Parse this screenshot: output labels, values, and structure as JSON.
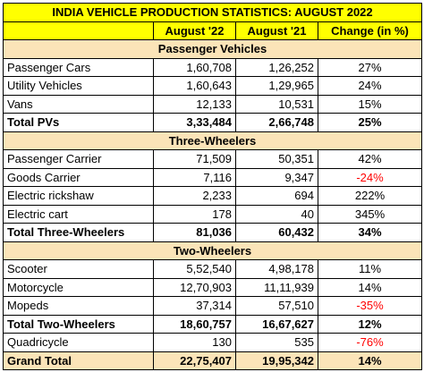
{
  "title": "INDIA VEHICLE PRODUCTION STATISTICS: AUGUST 2022",
  "columns": [
    "",
    "August '22",
    "August '21",
    "Change (in %)"
  ],
  "sections": [
    {
      "name": "Passenger Vehicles",
      "rows": [
        {
          "label": "Passenger Cars",
          "aug22": "1,60,708",
          "aug21": "1,26,252",
          "change": "27%",
          "negative": false
        },
        {
          "label": "Utility Vehicles",
          "aug22": "1,60,643",
          "aug21": "1,29,965",
          "change": "24%",
          "negative": false
        },
        {
          "label": "Vans",
          "aug22": "12,133",
          "aug21": "10,531",
          "change": "15%",
          "negative": false
        }
      ],
      "total": {
        "label": "Total PVs",
        "aug22": "3,33,484",
        "aug21": "2,66,748",
        "change": "25%"
      }
    },
    {
      "name": "Three-Wheelers",
      "rows": [
        {
          "label": "Passenger Carrier",
          "aug22": "71,509",
          "aug21": "50,351",
          "change": "42%",
          "negative": false
        },
        {
          "label": "Goods Carrier",
          "aug22": "7,116",
          "aug21": "9,347",
          "change": "-24%",
          "negative": true
        },
        {
          "label": "Electric rickshaw",
          "aug22": "2,233",
          "aug21": "694",
          "change": "222%",
          "negative": false
        },
        {
          "label": "Electric cart",
          "aug22": "178",
          "aug21": "40",
          "change": "345%",
          "negative": false
        }
      ],
      "total": {
        "label": "Total Three-Wheelers",
        "aug22": "81,036",
        "aug21": "60,432",
        "change": "34%"
      }
    },
    {
      "name": "Two-Wheelers",
      "rows": [
        {
          "label": "Scooter",
          "aug22": "5,52,540",
          "aug21": "4,98,178",
          "change": "11%",
          "negative": false
        },
        {
          "label": "Motorcycle",
          "aug22": "12,70,903",
          "aug21": "11,11,939",
          "change": "14%",
          "negative": false
        },
        {
          "label": "Mopeds",
          "aug22": "37,314",
          "aug21": "57,510",
          "change": "-35%",
          "negative": true
        }
      ],
      "total": {
        "label": "Total Two-Wheelers",
        "aug22": "18,60,757",
        "aug21": "16,67,627",
        "change": "12%"
      }
    }
  ],
  "quadricycle": {
    "label": "Quadricycle",
    "aug22": "130",
    "aug21": "535",
    "change": "-76%",
    "negative": true
  },
  "grand_total": {
    "label": "Grand Total",
    "aug22": "22,75,407",
    "aug21": "19,95,342",
    "change": "14%"
  },
  "colors": {
    "header_bg": "#ffff00",
    "section_bg": "#fbe4b8",
    "negative_text": "#ff0000"
  }
}
